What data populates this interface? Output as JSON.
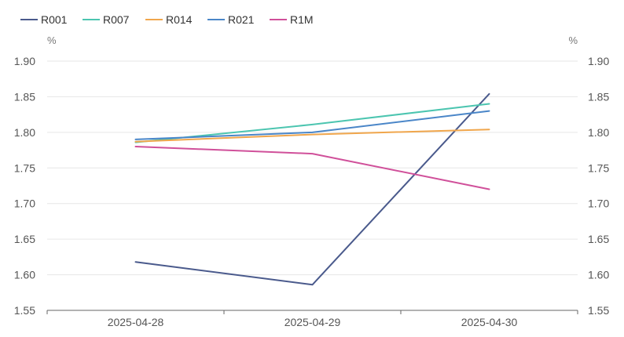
{
  "chart_data": {
    "type": "line",
    "categories": [
      "2025-04-28",
      "2025-04-29",
      "2025-04-30"
    ],
    "y_unit_left": "%",
    "y_unit_right": "%",
    "ylim": [
      1.55,
      1.9
    ],
    "yticks": [
      "1.55",
      "1.60",
      "1.65",
      "1.70",
      "1.75",
      "1.80",
      "1.85",
      "1.90"
    ],
    "grid": true,
    "legend_position": "top-left",
    "series": [
      {
        "name": "R001",
        "color": "#4a5a8c",
        "values": [
          1.618,
          1.586,
          1.854
        ]
      },
      {
        "name": "R007",
        "color": "#4cc5b0",
        "values": [
          1.786,
          1.811,
          1.84
        ]
      },
      {
        "name": "R014",
        "color": "#f0a64c",
        "values": [
          1.787,
          1.797,
          1.804
        ]
      },
      {
        "name": "R021",
        "color": "#4a86c8",
        "values": [
          1.79,
          1.8,
          1.83
        ]
      },
      {
        "name": "R1M",
        "color": "#d0509a",
        "values": [
          1.78,
          1.77,
          1.72
        ]
      }
    ]
  }
}
